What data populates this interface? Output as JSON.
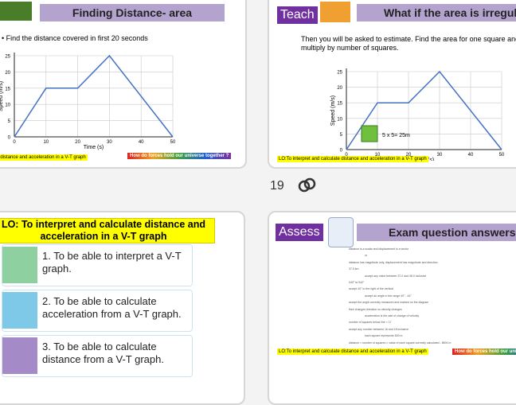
{
  "page_number": "19",
  "slides": [
    {
      "title": "Finding Distance- area",
      "bullet": "Find the distance covered in first 20 seconds",
      "graph": {
        "x": [
          0,
          10,
          20,
          30,
          50
        ],
        "y": [
          0,
          15,
          15,
          25,
          0
        ],
        "xlim": [
          0,
          50
        ],
        "ylim": [
          0,
          25
        ],
        "xticks": [
          0,
          10,
          20,
          30,
          40,
          50
        ],
        "yticks": [
          0,
          5,
          10,
          15,
          20,
          25
        ],
        "xlabel": "Time (s)",
        "ylabel": "Speed (m/s)"
      },
      "lo": "LO:To interpret and calculate distance and acceleration in a V-T graph",
      "question": "How do forces hold our universe together ?"
    },
    {
      "tag": "Teach",
      "title": "What if the area is irregular?",
      "text": "Then you will be asked to estimate. Find the area for one square and multiply by number of squares.",
      "graph": {
        "x": [
          0,
          10,
          20,
          30,
          50
        ],
        "y": [
          0,
          15,
          15,
          25,
          0
        ],
        "xlim": [
          0,
          50
        ],
        "ylim": [
          0,
          25
        ],
        "xticks": [
          0,
          10,
          20,
          30,
          40,
          50
        ],
        "yticks": [
          0,
          5,
          10,
          15,
          20,
          25
        ],
        "xlabel": "Time (s)",
        "ylabel": "Speed (m/s)"
      },
      "square_label": "5 x 5= 25m",
      "lo": "LO:To interpret and calculate distance and acceleration in a V-T graph"
    },
    {
      "title": "LO: To interpret and calculate distance and acceleration in a V-T graph",
      "objectives": [
        "1. To be able to interpret a V-T graph.",
        "2. To be able to calculate acceleration from a V-T graph.",
        "3. To be able to calculate distance from a V-T graph."
      ]
    },
    {
      "tag": "Assess",
      "title": "Exam question answers",
      "answers": [
        "distance is a scalar and displacement is a vector",
        "or",
        "distance has magnitude only, displacement has magnitude and direction",
        "37.5 km",
        "accept any value between 37.0 and 38.0 inclusive",
        "040° to 042°",
        "accept 40° to the right of the vertical",
        "accept an angle in the range 40° - 44°",
        "accept the angle correctly measured and marked on the diagram",
        "their changes direction so velocity changes",
        "acceleration is the rate of change of velocity",
        "number of squares below line = 17",
        "accept any number between 16 and 18 inclusive",
        "each square represents 500 m",
        "distance = number of squares × value of each square correctly calculated - 8500 m"
      ],
      "lo": "LO:To interpret and calculate distance and acceleration in a V-T graph",
      "question": "How do forces hold our universe together ?"
    }
  ]
}
